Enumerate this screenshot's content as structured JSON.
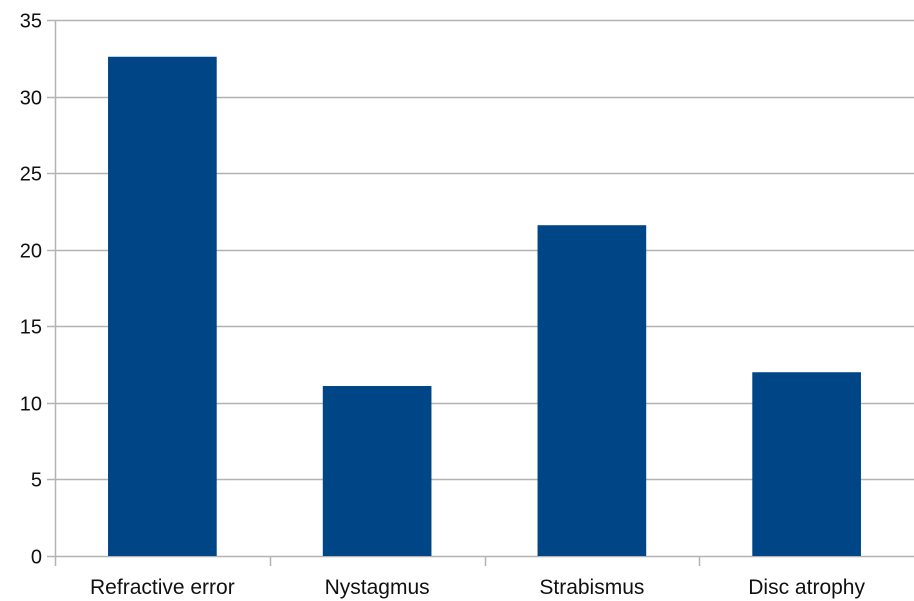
{
  "chart_data": {
    "type": "bar",
    "categories": [
      "Refractive error",
      "Nystagmus",
      "Strabismus",
      "Disc atrophy"
    ],
    "values": [
      32.6,
      11.1,
      21.6,
      12.0
    ],
    "ylim": [
      0,
      35
    ],
    "yticks": [
      0,
      5,
      10,
      15,
      20,
      25,
      30,
      35
    ],
    "grid": true,
    "legend": "none",
    "colors": {
      "bar": "#004586",
      "grid": "#b3b3b3",
      "axis": "#b3b3b3"
    }
  }
}
